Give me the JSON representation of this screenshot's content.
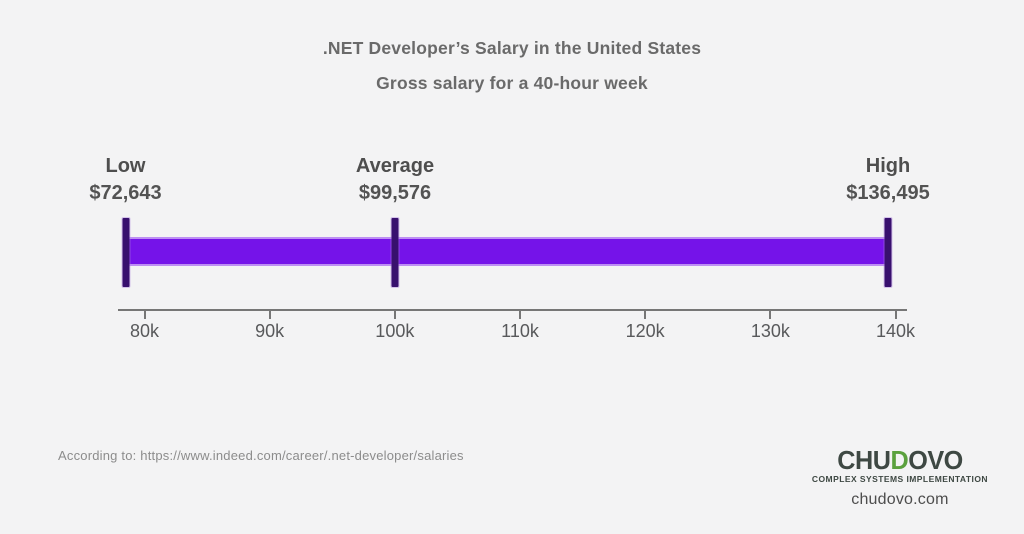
{
  "title": {
    "line1": ".NET Developer’s Salary in the United States",
    "line2": "Gross salary for a 40-hour week"
  },
  "chart_data": {
    "type": "bar",
    "subtype": "horizontal-salary-range",
    "title": ".NET Developer’s Salary in the United States",
    "subtitle": "Gross salary for a 40-hour week",
    "markers": [
      {
        "label": "Low",
        "value": 72643,
        "value_text": "$72,643"
      },
      {
        "label": "Average",
        "value": 99576,
        "value_text": "$99,576"
      },
      {
        "label": "High",
        "value": 136495,
        "value_text": "$136,495"
      }
    ],
    "axis": {
      "tick_labels": [
        "80k",
        "90k",
        "100k",
        "110k",
        "120k",
        "130k",
        "140k"
      ],
      "tick_values": [
        80000,
        90000,
        100000,
        110000,
        120000,
        130000,
        140000
      ],
      "min": 80000,
      "max": 140000,
      "grid": false
    },
    "colors": {
      "bar": "#7513e9",
      "bar_edge": "#bd8ef3",
      "marker": "#38106e",
      "axis": "#767676"
    }
  },
  "source": {
    "text": "According to: https://www.indeed.com/career/.net-developer/salaries"
  },
  "logo": {
    "brand_prefix": "CHU",
    "brand_accent": "D",
    "brand_suffix": "OVO",
    "tagline": "COMPLEX SYSTEMS IMPLEMENTATION",
    "website": "chudovo.com",
    "accent_color": "#5ba13e",
    "dark_color": "#3e4843",
    "background": "#f3f3f4"
  }
}
